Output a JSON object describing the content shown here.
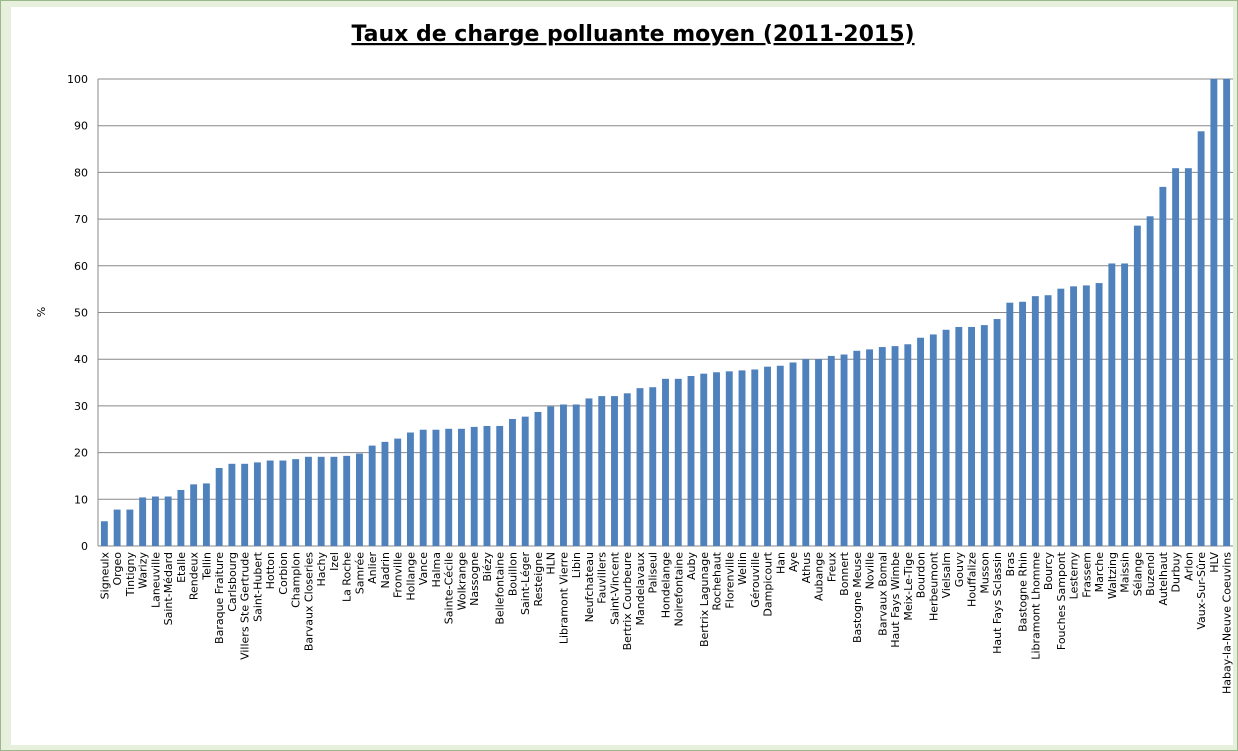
{
  "chart_data": {
    "type": "bar",
    "title": "Taux de charge polluante moyen (2011-2015)",
    "y_label": "%",
    "categories": [
      "Signeulx",
      "Orgeo",
      "Tintigny",
      "Warizy",
      "Laneuville",
      "Saint-Médard",
      "Etalle",
      "Rendeux",
      "Tellin",
      "Baraque Fraiture",
      "Carlsbourg",
      "Villers Ste Gertrude",
      "Saint-Hubert",
      "Hotton",
      "Corbion",
      "Champlon",
      "Barvaux Closeries",
      "Hachy",
      "Izel",
      "La Roche",
      "Samrée",
      "Anlier",
      "Nadrin",
      "Fronville",
      "Hollange",
      "Vance",
      "Halma",
      "Sainte-Cécile",
      "Wolkrange",
      "Nassogne",
      "Biézy",
      "Bellefontaine",
      "Bouillon",
      "Saint-Léger",
      "Resteigne",
      "HLN",
      "Libramont Vierre",
      "Libin",
      "Neufchateau",
      "Fauvillers",
      "Saint-Vincent",
      "Bertrix Courbeure",
      "Mandelavaux",
      "Paliseul",
      "Hondelange",
      "Noirefontaine",
      "Auby",
      "Bertrix Lagunage",
      "Rochehaut",
      "Florenville",
      "Wellin",
      "Gérouville",
      "Dampicourt",
      "Han",
      "Aye",
      "Athus",
      "Aubange",
      "Freux",
      "Bonnert",
      "Bastogne Meuse",
      "Noville",
      "Barvaux Bomal",
      "Haut Fays Wimbe",
      "Meix-Le-Tige",
      "Bourdon",
      "Herbeumont",
      "Vielsalm",
      "Gouvy",
      "Houffalize",
      "Musson",
      "Haut Fays Sclassin",
      "Bras",
      "Bastogne Rhin",
      "Libramont Lhomme",
      "Bourcy",
      "Fouches Sampont",
      "Lesterny",
      "Frassem",
      "Marche",
      "Waltzing",
      "Maissin",
      "Sélange",
      "Buzenol",
      "Autelhaut",
      "Durbuy",
      "Arlon",
      "Vaux-Sur-Sûre",
      "HLV",
      "Habay-la-Neuve Coeuvins"
    ],
    "values": [
      5.3,
      7.8,
      7.8,
      10.4,
      10.6,
      10.6,
      12.0,
      13.2,
      13.4,
      16.7,
      17.6,
      17.6,
      17.9,
      18.3,
      18.3,
      18.6,
      19.1,
      19.1,
      19.1,
      19.3,
      19.8,
      21.5,
      22.3,
      23.0,
      24.3,
      24.9,
      24.9,
      25.1,
      25.1,
      25.5,
      25.7,
      25.7,
      27.2,
      27.7,
      28.7,
      29.9,
      30.3,
      30.3,
      31.6,
      32.1,
      32.1,
      32.7,
      33.8,
      34.0,
      35.8,
      35.8,
      36.4,
      36.9,
      37.2,
      37.4,
      37.6,
      37.8,
      38.4,
      38.6,
      39.3,
      40.0,
      40.0,
      40.7,
      41.0,
      41.8,
      42.1,
      42.6,
      42.8,
      43.2,
      44.6,
      45.3,
      46.3,
      46.9,
      46.9,
      47.3,
      48.6,
      52.1,
      52.3,
      53.5,
      53.7,
      55.1,
      55.6,
      55.8,
      56.3,
      60.5,
      60.5,
      68.6,
      70.6,
      76.9,
      80.9,
      80.9,
      88.8,
      100,
      100
    ],
    "color": "#4f81bd",
    "ylim": [
      0,
      100
    ],
    "yticks": [
      0,
      10,
      20,
      30,
      40,
      50,
      60,
      70,
      80,
      90,
      100
    ],
    "grid": true
  }
}
